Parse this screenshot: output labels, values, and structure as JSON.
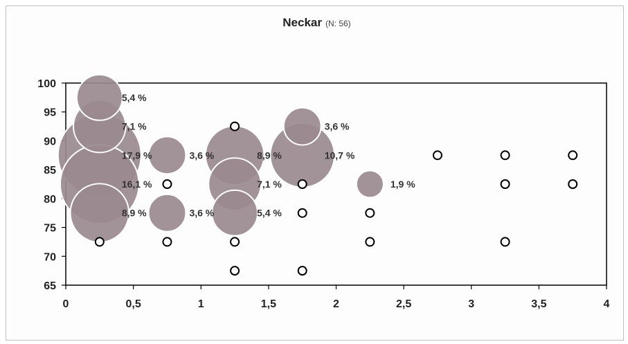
{
  "chart_data": {
    "type": "scatter",
    "title": "Neckar",
    "subtitle": "(N: 56)",
    "xlabel": "",
    "ylabel": "",
    "xlim": [
      0,
      4
    ],
    "ylim": [
      65,
      100
    ],
    "xticks": [
      "0",
      "0,5",
      "1",
      "1,5",
      "2",
      "2,5",
      "3",
      "3,5",
      "4"
    ],
    "yticks": [
      "65",
      "70",
      "75",
      "80",
      "85",
      "90",
      "95",
      "100"
    ],
    "grid": false,
    "legend": "none",
    "colors": {
      "bubble": "#9a8a90",
      "bubble_edge": "#ffffff",
      "empty_marker": "#000000",
      "axis": "#000000"
    },
    "series": [
      {
        "values_are": "percent",
        "points": [
          {
            "x": 0.25,
            "y": 97.5,
            "value": 5.4,
            "label": "5,4 %"
          },
          {
            "x": 0.25,
            "y": 92.5,
            "value": 7.1,
            "label": "7,1 %"
          },
          {
            "x": 0.25,
            "y": 87.5,
            "value": 17.9,
            "label": "17,9 %"
          },
          {
            "x": 0.25,
            "y": 82.5,
            "value": 16.1,
            "label": "16,1 %"
          },
          {
            "x": 0.25,
            "y": 77.5,
            "value": 8.9,
            "label": "8,9 %"
          },
          {
            "x": 0.75,
            "y": 87.5,
            "value": 3.6,
            "label": "3,6 %"
          },
          {
            "x": 0.75,
            "y": 77.5,
            "value": 3.6,
            "label": "3,6 %"
          },
          {
            "x": 1.25,
            "y": 87.5,
            "value": 8.9,
            "label": "8,9 %"
          },
          {
            "x": 1.25,
            "y": 82.5,
            "value": 7.1,
            "label": "7,1 %"
          },
          {
            "x": 1.25,
            "y": 77.5,
            "value": 5.4,
            "label": "5,4 %"
          },
          {
            "x": 1.75,
            "y": 92.5,
            "value": 3.6,
            "label": "3,6 %"
          },
          {
            "x": 1.75,
            "y": 87.5,
            "value": 10.7,
            "label": "10,7 %"
          },
          {
            "x": 2.25,
            "y": 82.5,
            "value": 1.9,
            "label": "1,9 %"
          }
        ]
      },
      {
        "values_are": "zero",
        "points": [
          {
            "x": 0.25,
            "y": 72.5
          },
          {
            "x": 0.75,
            "y": 82.5
          },
          {
            "x": 0.75,
            "y": 72.5
          },
          {
            "x": 1.25,
            "y": 92.5
          },
          {
            "x": 1.25,
            "y": 72.5
          },
          {
            "x": 1.25,
            "y": 67.5
          },
          {
            "x": 1.75,
            "y": 82.5
          },
          {
            "x": 1.75,
            "y": 77.5
          },
          {
            "x": 1.75,
            "y": 67.5
          },
          {
            "x": 2.25,
            "y": 77.5
          },
          {
            "x": 2.25,
            "y": 72.5
          },
          {
            "x": 2.75,
            "y": 87.5
          },
          {
            "x": 3.25,
            "y": 87.5
          },
          {
            "x": 3.25,
            "y": 82.5
          },
          {
            "x": 3.25,
            "y": 72.5
          },
          {
            "x": 3.75,
            "y": 87.5
          },
          {
            "x": 3.75,
            "y": 82.5
          }
        ]
      }
    ]
  }
}
